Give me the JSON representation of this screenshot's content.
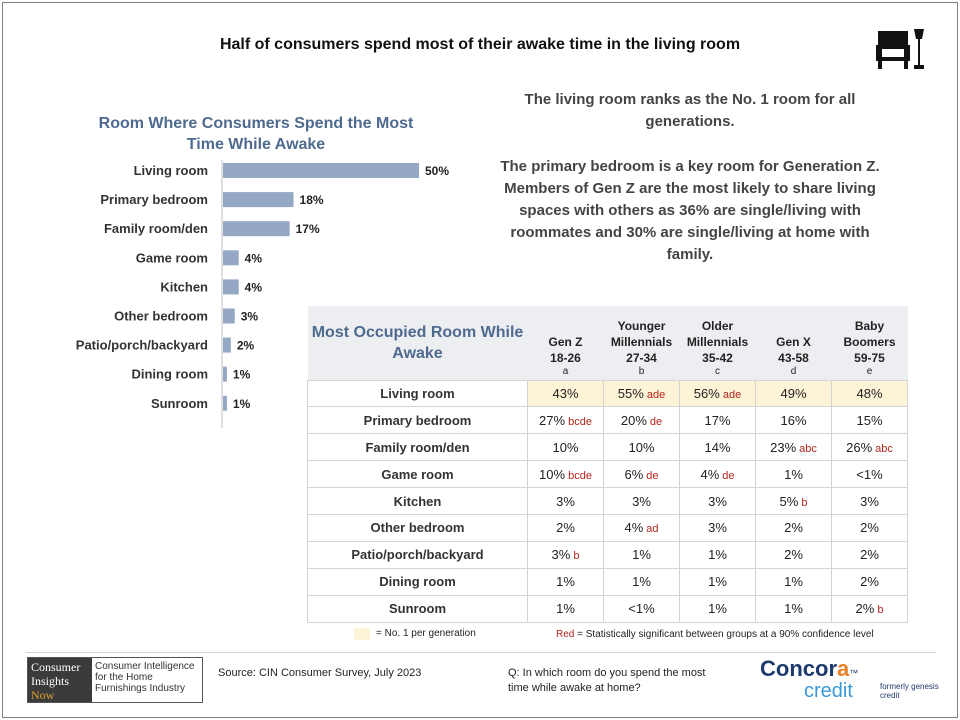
{
  "title": "Half of consumers spend most of their awake time in the living room",
  "icons": {
    "header": "sofa-lamp-icon"
  },
  "colors": {
    "bar": "#94a7c4",
    "accent": "#4f6a8f",
    "highlight": "#fdf3d6",
    "significance": "#b3261e"
  },
  "chart_data": [
    {
      "type": "bar",
      "orientation": "horizontal",
      "title": "Room Where Consumers Spend the Most Time While Awake",
      "categories": [
        "Living room",
        "Primary bedroom",
        "Family room/den",
        "Game room",
        "Kitchen",
        "Other bedroom",
        "Patio/porch/backyard",
        "Dining room",
        "Sunroom"
      ],
      "values": [
        50,
        18,
        17,
        4,
        4,
        3,
        2,
        1,
        1
      ],
      "value_labels": [
        "50%",
        "18%",
        "17%",
        "4%",
        "4%",
        "3%",
        "2%",
        "1%",
        "1%"
      ],
      "xlim": [
        0,
        50
      ],
      "grid": false
    },
    {
      "type": "table",
      "title": "Most Occupied Room While Awake",
      "columns": [
        {
          "name": "Gen Z",
          "range": "18-26",
          "letter": "a"
        },
        {
          "name": "Younger Millennials",
          "range": "27-34",
          "letter": "b"
        },
        {
          "name": "Older Millennials",
          "range": "35-42",
          "letter": "c"
        },
        {
          "name": "Gen X",
          "range": "43-58",
          "letter": "d"
        },
        {
          "name": "Baby Boomers",
          "range": "59-75",
          "letter": "e"
        }
      ],
      "rows": [
        {
          "label": "Living room",
          "cells": [
            {
              "value": "43%",
              "sig": "",
              "highlight": true
            },
            {
              "value": "55%",
              "sig": "ade",
              "highlight": true
            },
            {
              "value": "56%",
              "sig": "ade",
              "highlight": true
            },
            {
              "value": "49%",
              "sig": "",
              "highlight": true
            },
            {
              "value": "48%",
              "sig": "",
              "highlight": true
            }
          ]
        },
        {
          "label": "Primary bedroom",
          "cells": [
            {
              "value": "27%",
              "sig": "bcde"
            },
            {
              "value": "20%",
              "sig": "de"
            },
            {
              "value": "17%",
              "sig": ""
            },
            {
              "value": "16%",
              "sig": ""
            },
            {
              "value": "15%",
              "sig": ""
            }
          ]
        },
        {
          "label": "Family room/den",
          "cells": [
            {
              "value": "10%",
              "sig": ""
            },
            {
              "value": "10%",
              "sig": ""
            },
            {
              "value": "14%",
              "sig": ""
            },
            {
              "value": "23%",
              "sig": "abc"
            },
            {
              "value": "26%",
              "sig": "abc"
            }
          ]
        },
        {
          "label": "Game room",
          "cells": [
            {
              "value": "10%",
              "sig": "bcde"
            },
            {
              "value": "6%",
              "sig": "de"
            },
            {
              "value": "4%",
              "sig": "de"
            },
            {
              "value": "1%",
              "sig": ""
            },
            {
              "value": "<1%",
              "sig": ""
            }
          ]
        },
        {
          "label": "Kitchen",
          "cells": [
            {
              "value": "3%",
              "sig": ""
            },
            {
              "value": "3%",
              "sig": ""
            },
            {
              "value": "3%",
              "sig": ""
            },
            {
              "value": "5%",
              "sig": "b"
            },
            {
              "value": "3%",
              "sig": ""
            }
          ]
        },
        {
          "label": "Other bedroom",
          "cells": [
            {
              "value": "2%",
              "sig": ""
            },
            {
              "value": "4%",
              "sig": "ad"
            },
            {
              "value": "3%",
              "sig": ""
            },
            {
              "value": "2%",
              "sig": ""
            },
            {
              "value": "2%",
              "sig": ""
            }
          ]
        },
        {
          "label": "Patio/porch/backyard",
          "cells": [
            {
              "value": "3%",
              "sig": "b"
            },
            {
              "value": "1%",
              "sig": ""
            },
            {
              "value": "1%",
              "sig": ""
            },
            {
              "value": "2%",
              "sig": ""
            },
            {
              "value": "2%",
              "sig": ""
            }
          ]
        },
        {
          "label": "Dining room",
          "cells": [
            {
              "value": "1%",
              "sig": ""
            },
            {
              "value": "1%",
              "sig": ""
            },
            {
              "value": "1%",
              "sig": ""
            },
            {
              "value": "1%",
              "sig": ""
            },
            {
              "value": "2%",
              "sig": ""
            }
          ]
        },
        {
          "label": "Sunroom",
          "cells": [
            {
              "value": "1%",
              "sig": ""
            },
            {
              "value": "<1%",
              "sig": ""
            },
            {
              "value": "1%",
              "sig": ""
            },
            {
              "value": "1%",
              "sig": ""
            },
            {
              "value": "2%",
              "sig": "b"
            }
          ]
        }
      ]
    }
  ],
  "notes": {
    "note1": "The living room ranks as the No. 1 room for all generations.",
    "note2": "The primary bedroom is a key room for Generation Z. Members of Gen Z are the most likely to share living spaces with others as 36% are single/living with roommates and 30% are single/living at home with family."
  },
  "legend": {
    "highlight_text": "= No. 1 per generation",
    "red_word": "Red",
    "red_text": " = Statistically significant between groups at a 90% confidence level"
  },
  "footer": {
    "source": "Source:  CIN Consumer Survey, July 2023",
    "question": "Q: In which room do you spend the most time while awake at home?",
    "cin_logo": {
      "line1": "Consumer",
      "line2": "Insights",
      "line3": "Now",
      "tagline": "Consumer Intelligence for the Home Furnishings Industry"
    },
    "concora": {
      "word_prefix": "Concor",
      "word_suffix": "a",
      "tm": "™",
      "credit": "credit",
      "formerly": "formerly genesis credit"
    }
  }
}
